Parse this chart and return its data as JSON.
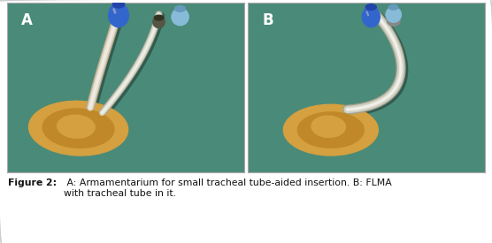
{
  "figure_width": 5.56,
  "figure_height": 2.75,
  "dpi": 100,
  "outer_bg": "#ffffff",
  "panel_bg": "#4a8a78",
  "border_color": "#aaaaaa",
  "label_A": "A",
  "label_B": "B",
  "label_fontsize": 12,
  "label_color": "#ffffff",
  "caption_bold": "Figure 2:",
  "caption_normal": " A: Armamentarium for small tracheal tube-aided insertion. B: FLMA\nwith tracheal tube in it.",
  "caption_fontsize": 7.8,
  "caption_color": "#111111",
  "mask_outer": "#d4a040",
  "mask_inner": "#c08828",
  "mask_detail": "#b07820",
  "tube_outer": "#c8c0a8",
  "tube_inner": "#e8e0d0",
  "blue_dark": "#2244aa",
  "blue_mid": "#3366cc",
  "blue_light": "#88aadd",
  "light_blue": "#88bbd8",
  "light_blue_body": "#aaccdd",
  "dark_connector": "#444444",
  "metal_ring": "#888888",
  "shadow": "#00000033"
}
